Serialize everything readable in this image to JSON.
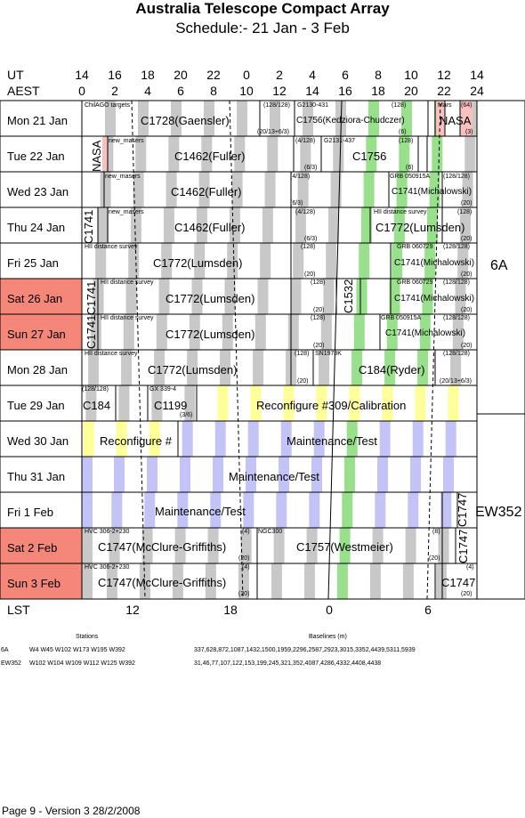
{
  "title": "Australia Telescope Compact Array",
  "subtitle": "Schedule:- 21 Jan - 3  Feb",
  "header": {
    "ut_label": "UT",
    "aest_label": "AEST",
    "ut_ticks": [
      "14",
      "16",
      "18",
      "20",
      "22",
      "0",
      "2",
      "4",
      "6",
      "8",
      "10",
      "12",
      "14"
    ],
    "aest_ticks": [
      "0",
      "2",
      "4",
      "6",
      "8",
      "10",
      "12",
      "14",
      "16",
      "18",
      "20",
      "22",
      "24"
    ]
  },
  "days": [
    {
      "label": "Mon   21 Jan",
      "weekend": false
    },
    {
      "label": "Tue   22 Jan",
      "weekend": false
    },
    {
      "label": "Wed  23 Jan",
      "weekend": false
    },
    {
      "label": "Thu   24 Jan",
      "weekend": false
    },
    {
      "label": "Fri    25 Jan",
      "weekend": false
    },
    {
      "label": "Sat   26 Jan",
      "weekend": true
    },
    {
      "label": "Sun   27 Jan",
      "weekend": true
    },
    {
      "label": "Mon  28 Jan",
      "weekend": false
    },
    {
      "label": "Tue   29 Jan",
      "weekend": false
    },
    {
      "label": "Wed  30 Jan",
      "weekend": false
    },
    {
      "label": "Thu   31 Jan",
      "weekend": false
    },
    {
      "label": "Fri     1 Feb",
      "weekend": false
    },
    {
      "label": "Sat    2 Feb",
      "weekend": true
    },
    {
      "label": "Sun   3 Feb",
      "weekend": true
    }
  ],
  "configs": [
    {
      "label": "6A"
    },
    {
      "label": "EW352"
    }
  ],
  "entries": [
    {
      "label": "C1728(Gaensler)",
      "small": "ChilAGO targets"
    },
    {
      "label": "C1756(Kedziora-Chudczer)",
      "small": "G2130-431"
    },
    {
      "label": "NASA",
      "small": "Mars"
    },
    {
      "label": "NASA",
      "small": ""
    },
    {
      "label": "C1462(Fuller)",
      "small": "new_masers"
    },
    {
      "label": "C1756",
      "small": "G2131-437"
    },
    {
      "label": "C1462(Fuller)",
      "small": "new_masers"
    },
    {
      "label": "C1741(Michalowski)",
      "small": "GRB 050915A"
    },
    {
      "label": "C1741",
      "small": ""
    },
    {
      "label": "C1462(Fuller)",
      "small": "new_masers"
    },
    {
      "label": "C1772(Lumsden)",
      "small": "HII distance survey"
    },
    {
      "label": "C1772(Lumsden)",
      "small": "HII distance survey"
    },
    {
      "label": "C1741(Michalowski)",
      "small": "GRB 060729"
    },
    {
      "label": "C1741",
      "small": ""
    },
    {
      "label": "C1772(Lumsden)",
      "small": "HII distance survey"
    },
    {
      "label": "C1532",
      "small": ""
    },
    {
      "label": "C1741(Michalowski)",
      "small": "GRB 060729"
    },
    {
      "label": "C1741",
      "small": ""
    },
    {
      "label": "C1772(Lumsden)",
      "small": "HII distance survey"
    },
    {
      "label": "C1741(Michalowski)",
      "small": "GRB 050915A"
    },
    {
      "label": "C1772(Lumsden)",
      "small": "HII distance survey"
    },
    {
      "label": "C184(Ryder)",
      "small": "SN1978K"
    },
    {
      "label": "C184",
      "small": ""
    },
    {
      "label": "C1199",
      "small": "GX 339-4"
    },
    {
      "label": "Reconfigure #309/Calibration",
      "small": ""
    },
    {
      "label": "Reconfigure #",
      "small": ""
    },
    {
      "label": "Maintenance/Test",
      "small": ""
    },
    {
      "label": "Maintenance/Test",
      "small": ""
    },
    {
      "label": "Maintenance/Test",
      "small": ""
    },
    {
      "label": "C1747",
      "small": ""
    },
    {
      "label": "C1747(McClure-Griffiths)",
      "small": "HVC 306-2+230"
    },
    {
      "label": "C1757(Westmeier)",
      "small": "NGC300"
    },
    {
      "label": "C1747",
      "small": ""
    },
    {
      "label": "C1747(McClure-Griffiths)",
      "small": "HVC 306-2+230"
    },
    {
      "label": "C1747",
      "small": ""
    }
  ],
  "tags": [
    "(128/128)",
    "(20/13+6/3)",
    "(128)",
    "(64)",
    "(3)",
    "(6)",
    "(4/128)",
    "(6/3)",
    "(128/128)",
    "(20)",
    "(4)",
    "(3/6)",
    "(8)"
  ],
  "lst": {
    "label": "LST",
    "ticks": [
      "12",
      "18",
      "0",
      "6"
    ]
  },
  "stations_table": {
    "stations_header": "Stations",
    "baselines_header": "Baselines (m)",
    "rows": [
      {
        "config": "6A",
        "stations": "W4 W45 W102 W173 W195 W392",
        "baselines": "337,628,872,1087,1432,1500,1959,2296,2587,2923,3015,3352,4439,5311,5939"
      },
      {
        "config": "EW352",
        "stations": "W102 W104 W109 W112 W125 W392",
        "baselines": "31,46,77,107,122,153,199,245,321,352,4087,4286,4332,4408,4438"
      }
    ]
  },
  "footer": "Page 9 - Version 3  28/2/2008"
}
